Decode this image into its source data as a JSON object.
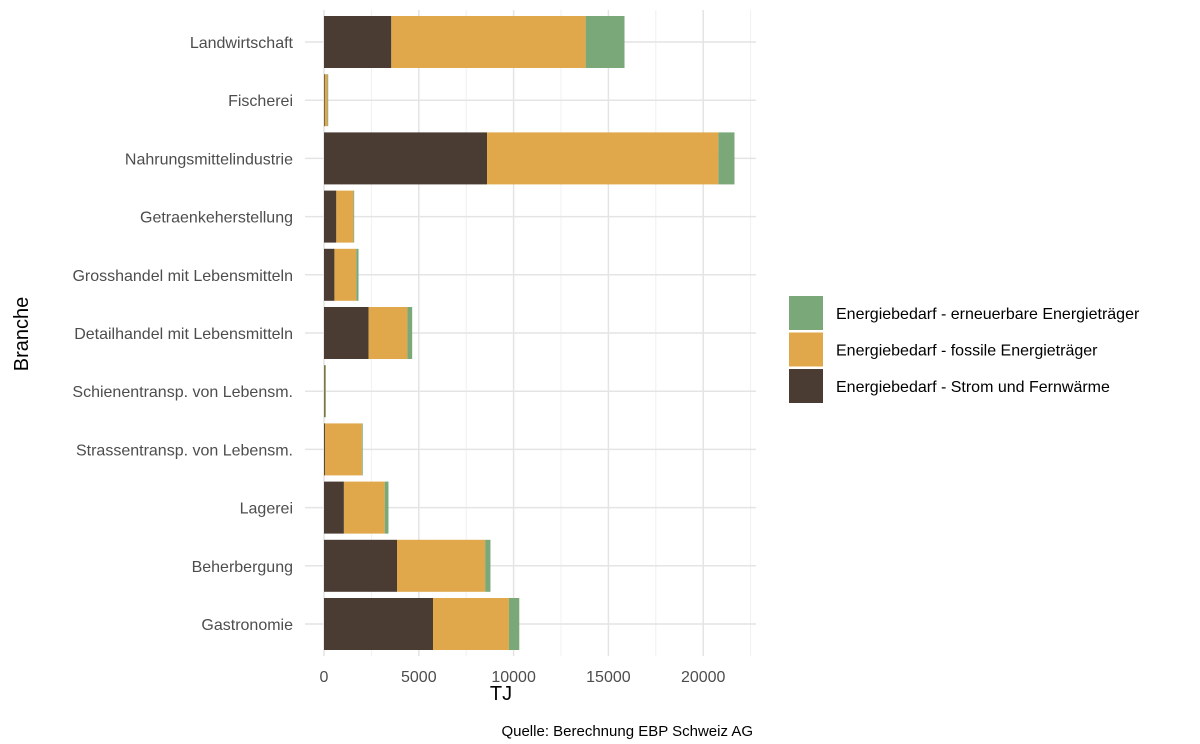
{
  "chart_data": {
    "type": "bar",
    "orientation": "horizontal",
    "stacked": true,
    "xlabel": "TJ",
    "ylabel": "Branche",
    "xlim": [
      0,
      22500
    ],
    "xticks": [
      0,
      5000,
      10000,
      15000,
      20000
    ],
    "grid": true,
    "legend_position": "right",
    "caption": "Quelle: Berechnung EBP Schweiz AG",
    "categories": [
      "Landwirtschaft",
      "Fischerei",
      "Nahrungsmittelindustrie",
      "Getraenkeherstellung",
      "Grosshandel mit Lebensmitteln",
      "Detailhandel mit Lebensmitteln",
      "Schienentransp. von Lebensm.",
      "Strassentransp. von Lebensm.",
      "Lagerei",
      "Beherbergung",
      "Gastronomie"
    ],
    "series": [
      {
        "name": "Energiebedarf - Strom und Fernwärme",
        "color": "#4a3b33",
        "values": [
          3550,
          40,
          8600,
          650,
          550,
          2350,
          30,
          50,
          1050,
          3850,
          5750
        ]
      },
      {
        "name": "Energiebedarf - fossile Energieträger",
        "color": "#e0a84a",
        "values": [
          10250,
          140,
          12200,
          900,
          1150,
          2050,
          30,
          1950,
          2150,
          4650,
          4000
        ]
      },
      {
        "name": "Energiebedarf - erneuerbare Energieträger",
        "color": "#7aa878",
        "values": [
          2050,
          10,
          850,
          20,
          120,
          250,
          10,
          20,
          200,
          280,
          550
        ]
      }
    ],
    "legend_order": [
      2,
      1,
      0
    ]
  }
}
